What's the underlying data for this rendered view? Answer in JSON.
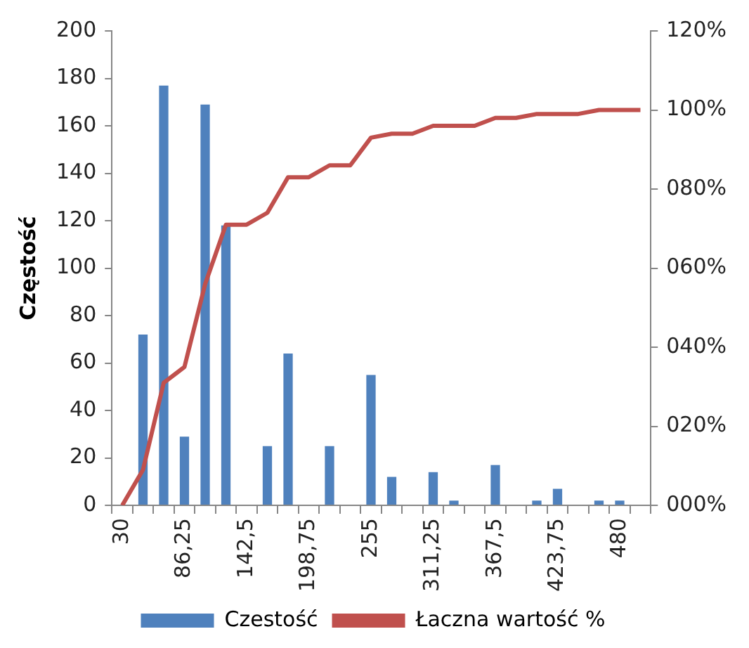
{
  "chart_data": {
    "type": "bar",
    "ylabel": "Częstość",
    "categories": [
      "30",
      null,
      null,
      "86,25",
      null,
      null,
      "142,5",
      null,
      null,
      "198,75",
      null,
      null,
      "255",
      null,
      null,
      "311,25",
      null,
      null,
      "367,5",
      null,
      null,
      "423,75",
      null,
      null,
      "480",
      null
    ],
    "series": [
      {
        "name": "Czestość",
        "color": "#4f81bd",
        "values": [
          0,
          72,
          177,
          29,
          169,
          118,
          0,
          25,
          64,
          0,
          25,
          0,
          55,
          12,
          0,
          14,
          2,
          0,
          17,
          0,
          2,
          7,
          0,
          2,
          2,
          0
        ]
      },
      {
        "name": "Łaczna wartość %",
        "type": "line",
        "axis": "y2",
        "color": "#c0504d",
        "values": [
          0,
          9,
          31,
          35,
          56,
          71,
          71,
          74,
          83,
          83,
          86,
          86,
          93,
          94,
          94,
          96,
          96,
          96,
          98,
          98,
          99,
          99,
          99,
          100,
          100,
          100
        ]
      }
    ],
    "ylim": [
      0,
      200
    ],
    "yticks": [
      0,
      20,
      40,
      60,
      80,
      100,
      120,
      140,
      160,
      180,
      200
    ],
    "y2lim": [
      0,
      120
    ],
    "y2ticks": [
      {
        "value": 0,
        "label": "000%"
      },
      {
        "value": 20,
        "label": "020%"
      },
      {
        "value": 40,
        "label": "040%"
      },
      {
        "value": 60,
        "label": "060%"
      },
      {
        "value": 80,
        "label": "080%"
      },
      {
        "value": 100,
        "label": "100%"
      },
      {
        "value": 120,
        "label": "120%"
      }
    ],
    "grid": false,
    "legend": "bottom",
    "marker": "none"
  }
}
